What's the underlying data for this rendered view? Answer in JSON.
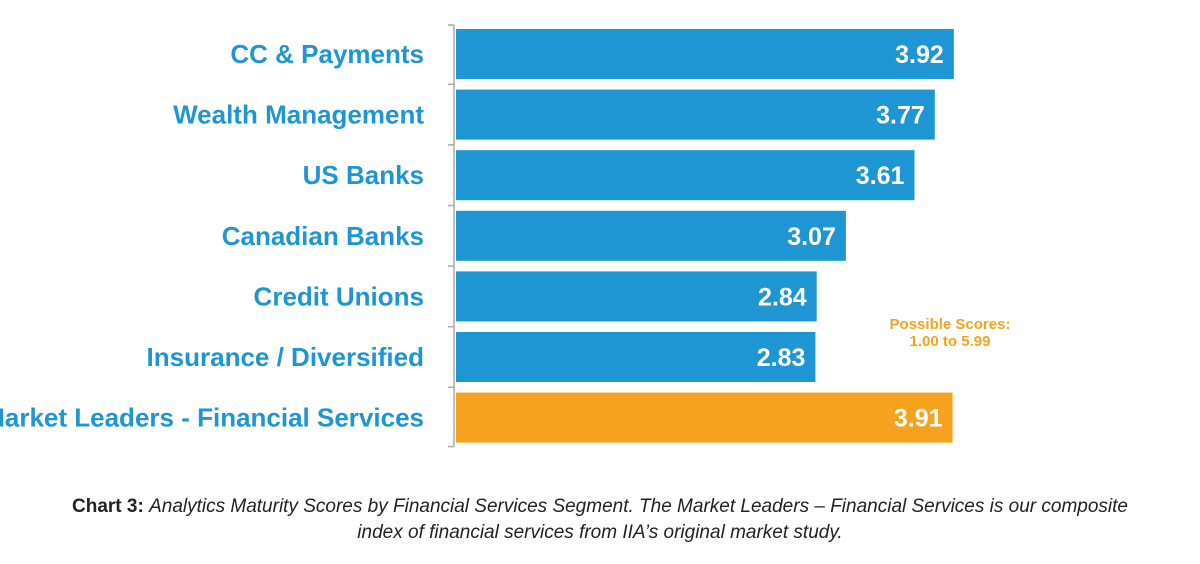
{
  "chart_data": {
    "type": "bar",
    "orientation": "horizontal",
    "categories": [
      "CC & Payments",
      "Wealth Management",
      "US Banks",
      "Canadian Banks",
      "Credit Unions",
      "Insurance / Diversified",
      "Market Leaders - Financial Services"
    ],
    "values": [
      3.92,
      3.77,
      3.61,
      3.07,
      2.84,
      2.83,
      3.91
    ],
    "value_labels": [
      "3.92",
      "3.77",
      "3.61",
      "3.07",
      "2.84",
      "2.83",
      "3.91"
    ],
    "highlight_index": 6,
    "xlim": [
      0,
      5.99
    ],
    "grid": false,
    "colors": {
      "bar": "#1e96d3",
      "highlight_bar": "#f5a31f",
      "label": "#1e96d3",
      "axis": "#aaaaaa"
    },
    "annotation": {
      "line1": "Possible Scores:",
      "line2": "1.00 to 5.99"
    }
  },
  "caption": {
    "bold": "Chart 3:",
    "text": "Analytics Maturity Scores by Financial Services Segment. The Market Leaders – Financial Services is our composite index of financial services from IIA’s original market study."
  }
}
